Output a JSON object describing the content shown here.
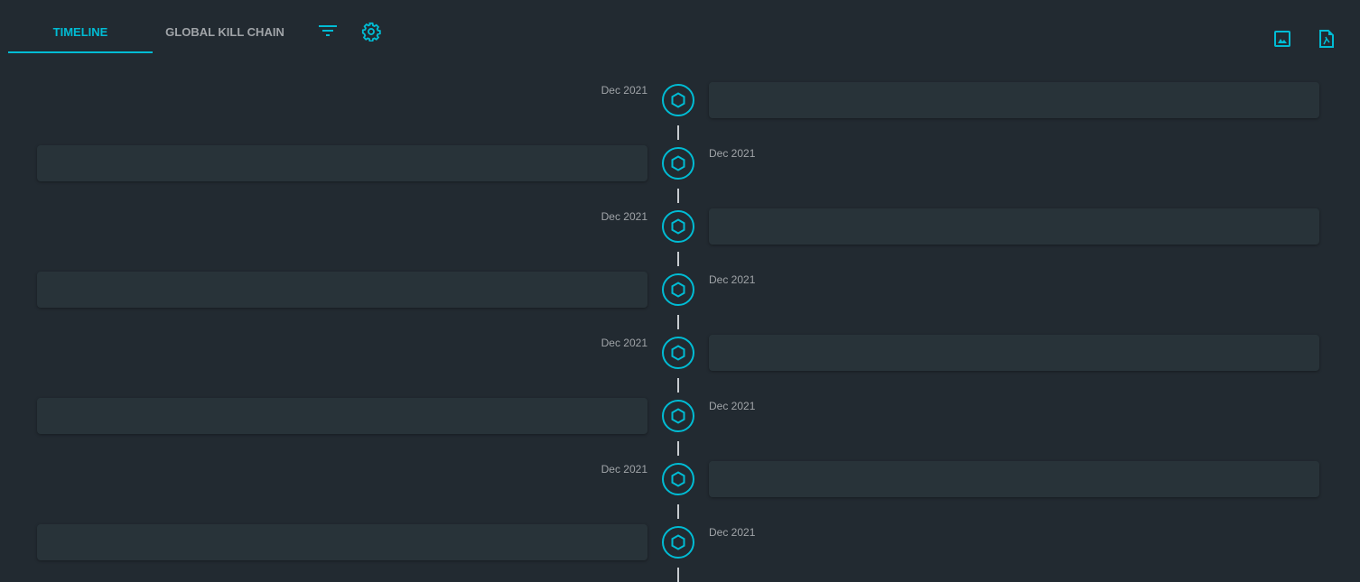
{
  "tabs": [
    {
      "label": "TIMELINE",
      "active": true
    },
    {
      "label": "GLOBAL KILL CHAIN",
      "active": false
    }
  ],
  "toolbar": {
    "icons": [
      "filter-icon",
      "settings-icon"
    ],
    "export_icons": [
      "export-image-icon",
      "export-pdf-icon"
    ]
  },
  "accent_color": "#00bcd4",
  "timeline": {
    "items": [
      {
        "date": "Dec 2021",
        "side": "right"
      },
      {
        "date": "Dec 2021",
        "side": "left"
      },
      {
        "date": "Dec 2021",
        "side": "right"
      },
      {
        "date": "Dec 2021",
        "side": "left"
      },
      {
        "date": "Dec 2021",
        "side": "right"
      },
      {
        "date": "Dec 2021",
        "side": "left"
      },
      {
        "date": "Dec 2021",
        "side": "right"
      },
      {
        "date": "Dec 2021",
        "side": "left"
      }
    ]
  }
}
